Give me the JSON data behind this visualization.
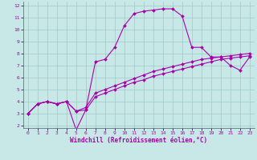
{
  "xlabel": "Windchill (Refroidissement éolien,°C)",
  "xlim": [
    -0.5,
    23.5
  ],
  "ylim": [
    1.8,
    12.3
  ],
  "xticks": [
    0,
    1,
    2,
    3,
    4,
    5,
    6,
    7,
    8,
    9,
    10,
    11,
    12,
    13,
    14,
    15,
    16,
    17,
    18,
    19,
    20,
    21,
    22,
    23
  ],
  "yticks": [
    2,
    3,
    4,
    5,
    6,
    7,
    8,
    9,
    10,
    11,
    12
  ],
  "bg_color": "#c8e8e8",
  "line_color": "#aa00aa",
  "grid_color": "#a0c8c8",
  "line1_x": [
    0,
    1,
    2,
    3,
    4,
    5,
    6,
    7,
    8,
    9,
    10,
    11,
    12,
    13,
    14,
    15,
    16,
    17,
    18,
    19,
    20,
    21,
    22,
    23
  ],
  "line1_y": [
    3.0,
    3.8,
    4.0,
    3.8,
    4.0,
    3.2,
    3.3,
    4.4,
    4.7,
    5.0,
    5.3,
    5.6,
    5.8,
    6.1,
    6.3,
    6.5,
    6.7,
    6.9,
    7.1,
    7.3,
    7.5,
    7.6,
    7.7,
    7.8
  ],
  "line2_x": [
    0,
    1,
    2,
    3,
    4,
    5,
    6,
    7,
    8,
    9,
    10,
    11,
    12,
    13,
    14,
    15,
    16,
    17,
    18,
    19,
    20,
    21,
    22,
    23
  ],
  "line2_y": [
    3.0,
    3.8,
    4.0,
    3.8,
    4.0,
    3.2,
    3.5,
    4.7,
    5.0,
    5.3,
    5.6,
    5.9,
    6.2,
    6.5,
    6.7,
    6.9,
    7.1,
    7.3,
    7.5,
    7.6,
    7.7,
    7.8,
    7.9,
    8.0
  ],
  "line3_x": [
    0,
    1,
    2,
    3,
    4,
    5,
    6,
    7,
    8,
    9,
    10,
    11,
    12,
    13,
    14,
    15,
    16,
    17,
    18,
    19,
    20,
    21,
    22,
    23
  ],
  "line3_y": [
    3.0,
    3.8,
    4.0,
    3.8,
    4.0,
    1.65,
    3.3,
    7.3,
    7.5,
    8.5,
    10.3,
    11.3,
    11.5,
    11.6,
    11.7,
    11.7,
    11.1,
    8.5,
    8.5,
    7.7,
    7.7,
    7.0,
    6.6,
    7.7
  ],
  "marker": "D",
  "markersize": 2.0,
  "linewidth": 0.8,
  "tick_fontsize": 4.5,
  "label_fontsize": 5.5
}
